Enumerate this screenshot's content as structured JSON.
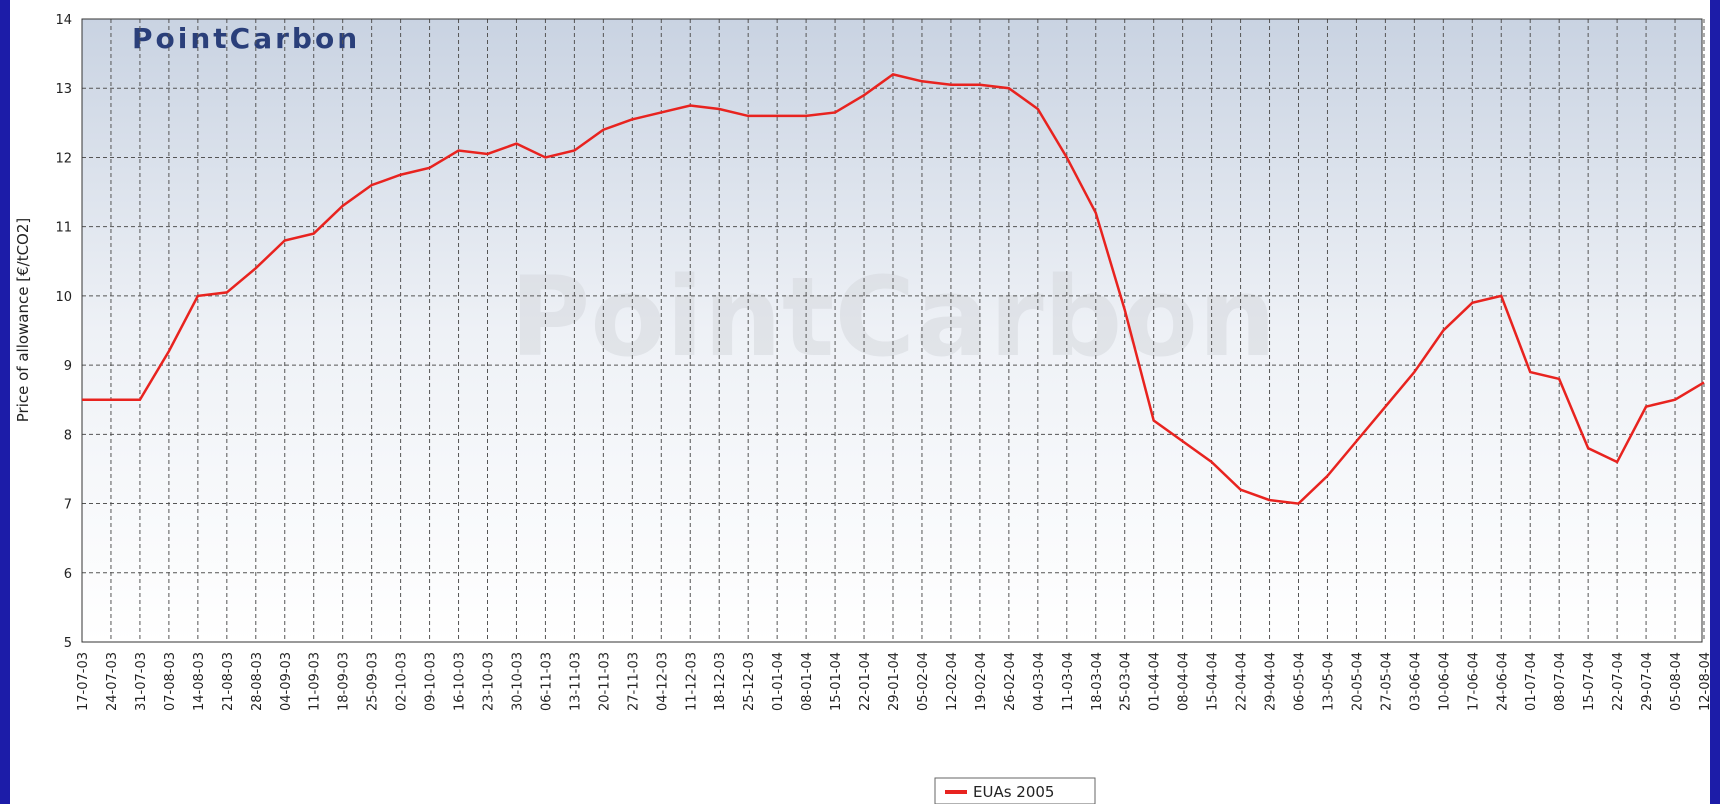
{
  "chart_data": {
    "type": "line",
    "logo": "PointCarbon",
    "ylabel": "Price of allowance [€/tCO2]",
    "categories": [
      "17-07-03",
      "24-07-03",
      "31-07-03",
      "07-08-03",
      "14-08-03",
      "21-08-03",
      "28-08-03",
      "04-09-03",
      "11-09-03",
      "18-09-03",
      "25-09-03",
      "02-10-03",
      "09-10-03",
      "16-10-03",
      "23-10-03",
      "30-10-03",
      "06-11-03",
      "13-11-03",
      "20-11-03",
      "27-11-03",
      "04-12-03",
      "11-12-03",
      "18-12-03",
      "25-12-03",
      "01-01-04",
      "08-01-04",
      "15-01-04",
      "22-01-04",
      "29-01-04",
      "05-02-04",
      "12-02-04",
      "19-02-04",
      "26-02-04",
      "04-03-04",
      "11-03-04",
      "18-03-04",
      "25-03-04",
      "01-04-04",
      "08-04-04",
      "15-04-04",
      "22-04-04",
      "29-04-04",
      "06-05-04",
      "13-05-04",
      "20-05-04",
      "27-05-04",
      "03-06-04",
      "10-06-04",
      "17-06-04",
      "24-06-04",
      "01-07-04",
      "08-07-04",
      "15-07-04",
      "22-07-04",
      "29-07-04",
      "05-08-04",
      "12-08-04"
    ],
    "series": [
      {
        "name": "EUAs 2005",
        "color": "#e8231f",
        "values": [
          8.5,
          8.5,
          8.5,
          9.2,
          10.0,
          10.05,
          10.4,
          10.8,
          10.9,
          11.3,
          11.6,
          11.75,
          11.85,
          12.1,
          12.05,
          12.2,
          12.0,
          12.1,
          12.4,
          12.55,
          12.65,
          12.75,
          12.7,
          12.6,
          12.6,
          12.6,
          12.65,
          12.9,
          13.2,
          13.1,
          13.05,
          13.05,
          13.0,
          12.7,
          12.0,
          11.2,
          9.8,
          8.2,
          7.9,
          7.6,
          7.2,
          7.05,
          7.0,
          7.4,
          7.9,
          8.4,
          8.9,
          9.5,
          9.9,
          10.0,
          8.9,
          8.8,
          7.8,
          7.6,
          8.4,
          8.5,
          8.75
        ]
      }
    ],
    "ylim": [
      5,
      14
    ],
    "yticks": [
      5,
      6,
      7,
      8,
      9,
      10,
      11,
      12,
      13,
      14
    ],
    "grid": true
  }
}
